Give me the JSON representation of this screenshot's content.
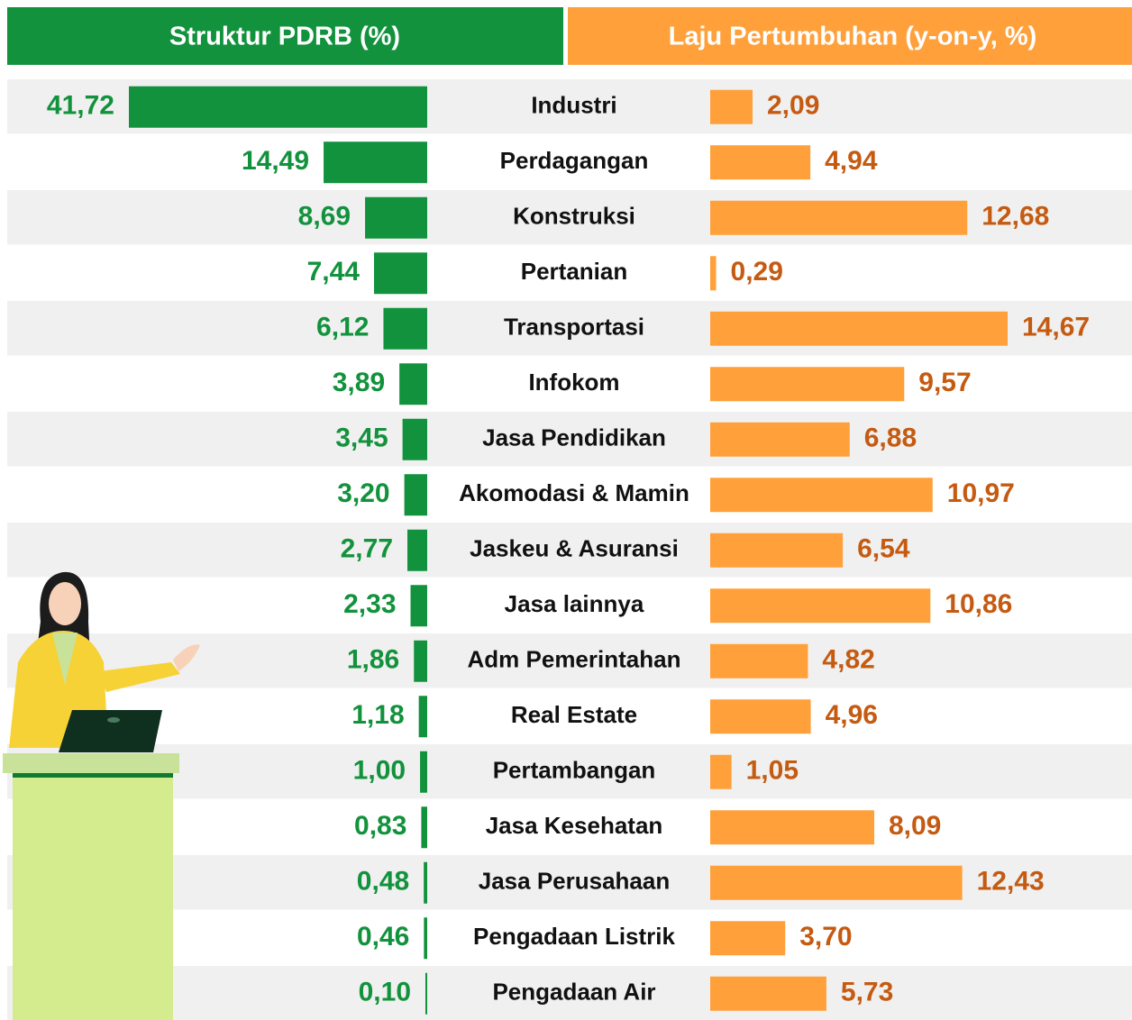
{
  "chart_data": {
    "type": "butterfly-bar",
    "categories": [
      "Industri",
      "Perdagangan",
      "Konstruksi",
      "Pertanian",
      "Transportasi",
      "Infokom",
      "Jasa Pendidikan",
      "Akomodasi & Mamin",
      "Jaskeu & Asuransi",
      "Jasa lainnya",
      "Adm Pemerintahan",
      "Real Estate",
      "Pertambangan",
      "Jasa Kesehatan",
      "Jasa Perusahaan",
      "Pengadaan Listrik",
      "Pengadaan Air"
    ],
    "series": [
      {
        "name": "Struktur PDRB (%)",
        "color": "#12923c",
        "values": [
          41.72,
          14.49,
          8.69,
          7.44,
          6.12,
          3.89,
          3.45,
          3.2,
          2.77,
          2.33,
          1.86,
          1.18,
          1.0,
          0.83,
          0.48,
          0.46,
          0.1
        ],
        "value_labels": [
          "41,72",
          "14,49",
          "8,69",
          "7,44",
          "6,12",
          "3,89",
          "3,45",
          "3,20",
          "2,77",
          "2,33",
          "1,86",
          "1,18",
          "1,00",
          "0,83",
          "0,48",
          "0,46",
          "0,10"
        ]
      },
      {
        "name": "Laju Pertumbuhan (y-on-y, %)",
        "color": "#ffa03a",
        "values": [
          2.09,
          4.94,
          12.68,
          0.29,
          14.67,
          9.57,
          6.88,
          10.97,
          6.54,
          10.86,
          4.82,
          4.96,
          1.05,
          8.09,
          12.43,
          3.7,
          5.73
        ],
        "value_labels": [
          "2,09",
          "4,94",
          "12,68",
          "0,29",
          "14,67",
          "9,57",
          "6,88",
          "10,97",
          "6,54",
          "10,86",
          "4,82",
          "4,96",
          "1,05",
          "8,09",
          "12,43",
          "3,70",
          "5,73"
        ]
      }
    ]
  }
}
